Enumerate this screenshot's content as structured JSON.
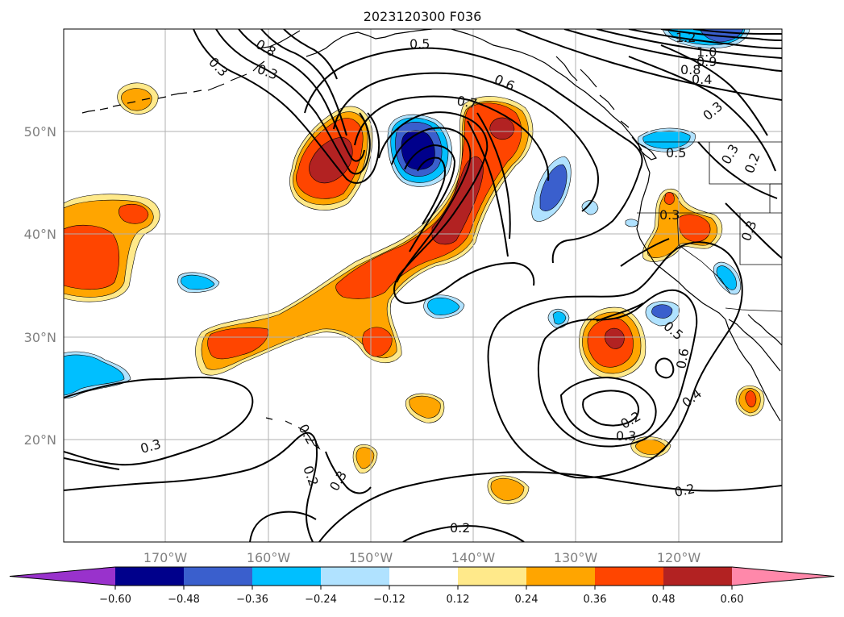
{
  "title": "2023120300 F036",
  "lon_labels": [
    "170°W",
    "160°W",
    "150°W",
    "140°W",
    "130°W",
    "120°W"
  ],
  "lat_labels": [
    "50°N",
    "40°N",
    "30°N",
    "20°N"
  ],
  "colorbar": {
    "ticks": [
      "−0.60",
      "−0.48",
      "−0.36",
      "−0.24",
      "−0.12",
      "0.12",
      "0.24",
      "0.36",
      "0.48",
      "0.60"
    ],
    "colors": [
      "#9932cc",
      "#00008b",
      "#3a5fcd",
      "#00bfff",
      "#b0e2ff",
      "#ffffff",
      "#ffe98a",
      "#ffa500",
      "#ff4500",
      "#b22222",
      "#ff88aa"
    ]
  },
  "contour_labels": [
    "0.5",
    "0.6",
    "0.7",
    "0.3",
    "0.8",
    "1.2",
    "1.0",
    "0.9",
    "0.8",
    "0.4",
    "0.3",
    "0.5",
    "0.3",
    "0.2",
    "0.3",
    "0.3",
    "0.5",
    "0.6",
    "0.4",
    "0.2",
    "0.3",
    "0.2",
    "0.3",
    "0.2",
    "0.3",
    "0.2",
    "0.2",
    "0.3"
  ]
}
